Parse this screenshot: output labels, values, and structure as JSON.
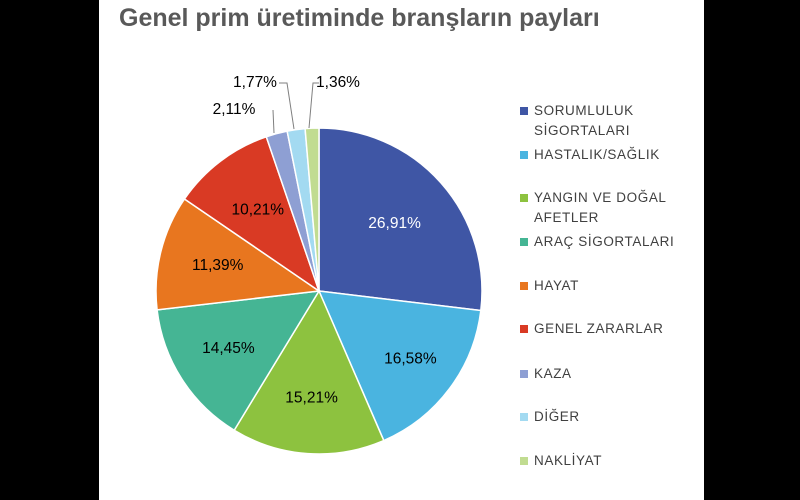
{
  "chart_data": {
    "type": "pie",
    "title": "Genel prim üretiminde branşların payları",
    "legend_position": "right",
    "start_angle_deg": 0,
    "direction": "clockwise",
    "slices": [
      {
        "label": "SORUMLULUK SİGORTALARI",
        "value": 26.91,
        "value_label": "26,91%",
        "color": "#3F56A5",
        "label_color": "#FFFFFF"
      },
      {
        "label": "HASTALIK/SAĞLIK",
        "value": 16.58,
        "value_label": "16,58%",
        "color": "#4AB4E0",
        "label_color": "#000000"
      },
      {
        "label": "YANGIN VE DOĞAL AFETLER",
        "value": 15.21,
        "value_label": "15,21%",
        "color": "#8DC23F",
        "label_color": "#000000"
      },
      {
        "label": "ARAÇ SİGORTALARI",
        "value": 14.45,
        "value_label": "14,45%",
        "color": "#45B594",
        "label_color": "#000000"
      },
      {
        "label": "HAYAT",
        "value": 11.39,
        "value_label": "11,39%",
        "color": "#E8761F",
        "label_color": "#000000"
      },
      {
        "label": "GENEL ZARARLAR",
        "value": 10.21,
        "value_label": "10,21%",
        "color": "#D93A24",
        "label_color": "#000000"
      },
      {
        "label": "KAZA",
        "value": 2.11,
        "value_label": "2,11%",
        "color": "#8E9FD3",
        "label_color": "#000000"
      },
      {
        "label": "DİĞER",
        "value": 1.77,
        "value_label": "1,77%",
        "color": "#A3DAF1",
        "label_color": "#000000"
      },
      {
        "label": "NAKLİYAT",
        "value": 1.36,
        "value_label": "1,36%",
        "color": "#C1DC91",
        "label_color": "#000000"
      }
    ]
  }
}
